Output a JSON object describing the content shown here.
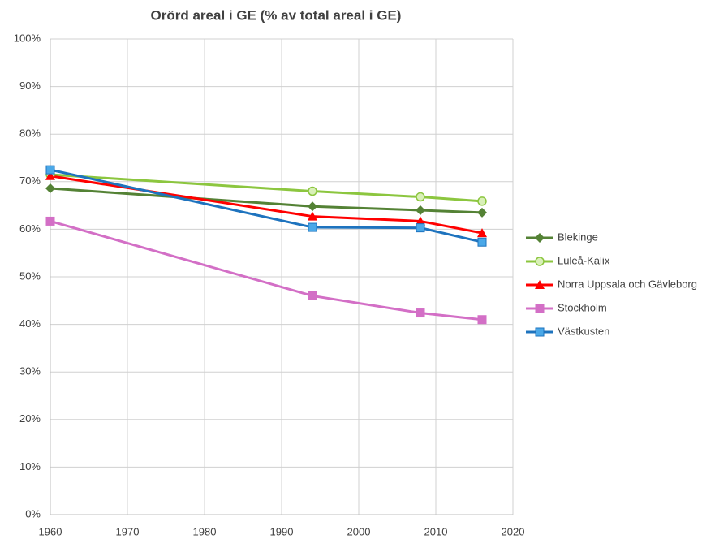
{
  "chart_data": {
    "type": "line",
    "title": "Orörd areal i GE (% av total areal i GE)",
    "x": [
      1960,
      1994,
      2008,
      2016
    ],
    "series": [
      {
        "name": "Blekinge",
        "color": "#548235",
        "marker": "diamond",
        "values": [
          68.6,
          64.8,
          64.0,
          63.5
        ]
      },
      {
        "name": "Luleå-Kalix",
        "color": "#8cc63f",
        "marker": "circle",
        "values": [
          71.5,
          68.0,
          66.8,
          65.9
        ]
      },
      {
        "name": "Norra Uppsala och Gävleborg",
        "color": "#ff0000",
        "marker": "triangle",
        "values": [
          71.2,
          62.7,
          61.7,
          59.2
        ]
      },
      {
        "name": "Stockholm",
        "color": "#d36fc6",
        "marker": "square",
        "values": [
          61.7,
          46.0,
          42.4,
          41.0
        ]
      },
      {
        "name": "Västkusten",
        "color": "#1e73be",
        "marker": "square",
        "values": [
          72.5,
          60.4,
          60.3,
          57.3
        ]
      }
    ],
    "xlim": [
      1960,
      2020
    ],
    "xticks": [
      1960,
      1970,
      1980,
      1990,
      2000,
      2010,
      2020
    ],
    "ylim": [
      0,
      100
    ],
    "yticks": [
      {
        "value": 0,
        "label": "0%"
      },
      {
        "value": 10,
        "label": "10%"
      },
      {
        "value": 20,
        "label": "20%"
      },
      {
        "value": 30,
        "label": "30%"
      },
      {
        "value": 40,
        "label": "40%"
      },
      {
        "value": 50,
        "label": "50%"
      },
      {
        "value": 60,
        "label": "60%"
      },
      {
        "value": 70,
        "label": "70%"
      },
      {
        "value": 80,
        "label": "80%"
      },
      {
        "value": 90,
        "label": "90%"
      },
      {
        "value": 100,
        "label": "100%"
      }
    ],
    "grid": true,
    "legend": "right"
  }
}
